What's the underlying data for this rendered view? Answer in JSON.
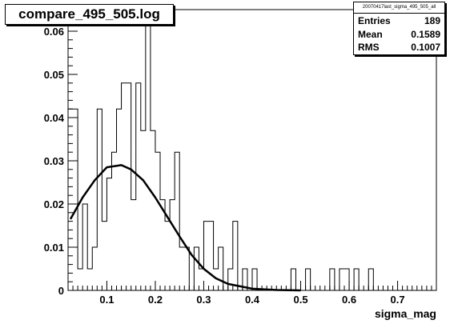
{
  "chart_data": {
    "type": "histogram",
    "title": "compare_495_505.log",
    "xlabel": "sigma_mag",
    "ylabel": "",
    "xlim": [
      0.02,
      0.78
    ],
    "ylim": [
      0,
      0.065
    ],
    "x_ticks": [
      "0.1",
      "0.2",
      "0.3",
      "0.4",
      "0.5",
      "0.6",
      "0.7"
    ],
    "y_ticks": [
      "0",
      "0.01",
      "0.02",
      "0.03",
      "0.04",
      "0.05",
      "0.06"
    ],
    "bin_width": 0.01,
    "bin_start": 0.02,
    "bin_values": [
      0.042,
      0.042,
      0.005,
      0.02,
      0.005,
      0.01,
      0.042,
      0.016,
      0.026,
      0.032,
      0.042,
      0.048,
      0.048,
      0.021,
      0.048,
      0.037,
      0.063,
      0.037,
      0.032,
      0.021,
      0.016,
      0.021,
      0.032,
      0.01,
      0.01,
      0.0,
      0.01,
      0.005,
      0.016,
      0.016,
      0.005,
      0.01,
      0.0,
      0.005,
      0.016,
      0.0,
      0.005,
      0.0,
      0.005,
      0.0,
      0.0,
      0.0,
      0.0,
      0.0,
      0.0,
      0.0,
      0.005,
      0.0,
      0.0,
      0.005,
      0.0,
      0.0,
      0.0,
      0.0,
      0.005,
      0.0,
      0.005,
      0.005,
      0.0,
      0.005,
      0.0,
      0.0,
      0.005,
      0.0,
      0.0,
      0.0,
      0.0,
      0.0,
      0.0,
      0.0,
      0.0,
      0.0,
      0.0,
      0.0,
      0.0,
      0.0
    ],
    "fit": {
      "type": "gaussian",
      "x": [
        0.025,
        0.05,
        0.075,
        0.1,
        0.13,
        0.15,
        0.175,
        0.2,
        0.225,
        0.25,
        0.275,
        0.3,
        0.325,
        0.35,
        0.4,
        0.45,
        0.5
      ],
      "y": [
        0.0165,
        0.0215,
        0.0255,
        0.0285,
        0.029,
        0.028,
        0.0255,
        0.0215,
        0.017,
        0.0125,
        0.0082,
        0.005,
        0.0028,
        0.0015,
        0.0004,
        0.0001,
        0.0
      ]
    },
    "stats": {
      "name": "20070417last_sigma_495_505_all",
      "entries_label": "Entries",
      "entries": "189",
      "mean_label": "Mean",
      "mean": "0.1589",
      "rms_label": "RMS",
      "rms": "0.1007"
    },
    "grid": false,
    "legend": "top-right"
  }
}
